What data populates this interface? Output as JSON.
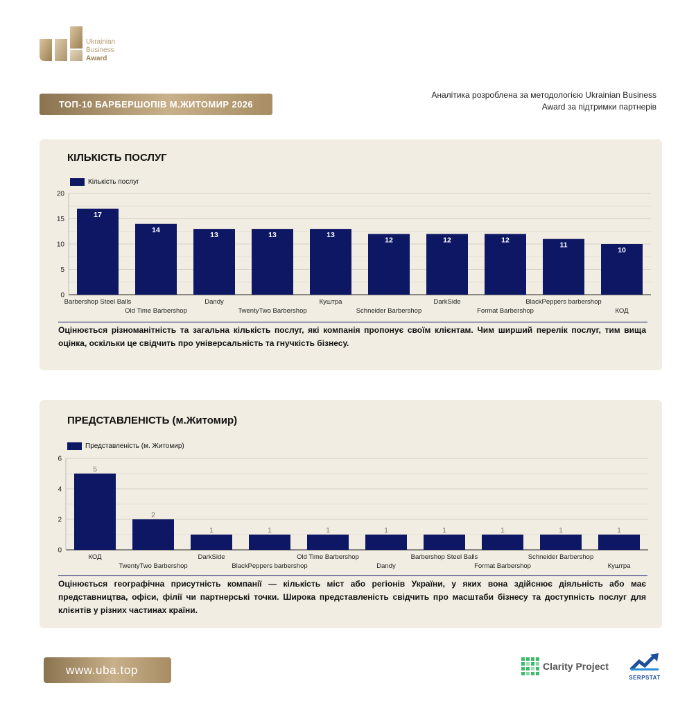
{
  "brand": {
    "logo_line1": "Ukrainian",
    "logo_line2": "Business",
    "logo_line3": "Award",
    "gold": "#b49a70"
  },
  "header": {
    "title": "ТОП-10 БАРБЕРШОПІВ М.ЖИТОМИР 2026",
    "methodology": "Аналітика розроблена за методологією Ukrainian Business Award за підтримки партнерів"
  },
  "chart_data": [
    {
      "type": "bar",
      "title": "КІЛЬКІСТЬ ПОСЛУГ",
      "legend": "Кількість послуг",
      "legend_position": "top-left",
      "categories": [
        "Barbershop Steel Balls",
        "Old Time Barbershop",
        "Dandy",
        "TwentyTwo Barbershop",
        "Куштра",
        "Schneider Barbershop",
        "DarkSide",
        "Format Barbershop",
        "BlackPeppers barbershop",
        "КОД"
      ],
      "values": [
        17,
        14,
        13,
        13,
        13,
        12,
        12,
        12,
        11,
        10
      ],
      "yticks": [
        0,
        5,
        10,
        15,
        20
      ],
      "ylim": [
        0,
        20
      ],
      "grid": true,
      "color": "#0d1763",
      "label_color": "#ffffff"
    },
    {
      "type": "bar",
      "title": "ПРЕДСТАВЛЕНІСТЬ (м.Житомир)",
      "legend": "Представленість (м. Житомир)",
      "legend_position": "top-left",
      "categories": [
        "КОД",
        "TwentyTwo Barbershop",
        "DarkSide",
        "BlackPeppers barbershop",
        "Old Time Barbershop",
        "Dandy",
        "Barbershop Steel Balls",
        "Format Barbershop",
        "Schneider Barbershop",
        "Куштра"
      ],
      "values": [
        5,
        2,
        1,
        1,
        1,
        1,
        1,
        1,
        1,
        1
      ],
      "yticks": [
        0,
        2,
        4,
        6
      ],
      "ylim": [
        0,
        6
      ],
      "grid": true,
      "color": "#0d1763",
      "label_color": "#777777"
    }
  ],
  "descriptions": {
    "services": "Оцінюється різноманітність та загальна кількість послуг, які компанія пропонує своїм клієнтам. Чим ширший перелік послуг, тим вища оцінка, оскільки це свідчить про універсальність та гнучкість бізнесу.",
    "presence": "Оцінюється географічна присутність компанії — кількість міст або регіонів України, у яких вона здійснює діяльність або має представництва, офіси, філії чи партнерські точки. Широка представленість свідчить про масштаби бізнесу та доступність послуг для клієнтів у різних частинах країни."
  },
  "footer": {
    "url": "www.uba.top",
    "partner1": "Clarity Project",
    "partner2": "SERPSTAT"
  }
}
